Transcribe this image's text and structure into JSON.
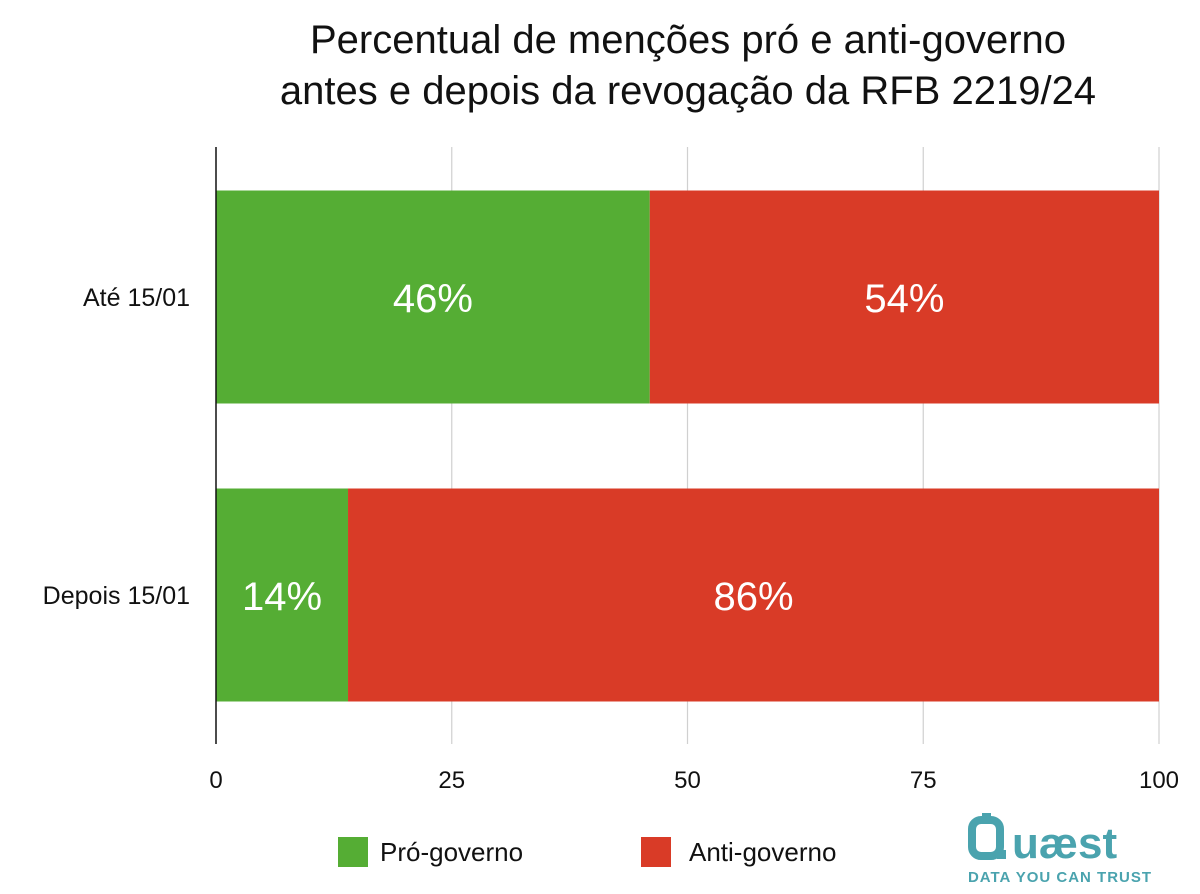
{
  "chart_data": {
    "type": "bar",
    "orientation": "horizontal",
    "stacked": true,
    "title": [
      "Percentual de menções pró e anti-governo",
      "antes e depois da revogação da RFB 2219/24"
    ],
    "categories": [
      "Até 15/01",
      "Depois 15/01"
    ],
    "series": [
      {
        "name": "Pró-governo",
        "values": [
          46,
          14
        ],
        "labels": [
          "46%",
          "14%"
        ],
        "color": "#55ad34"
      },
      {
        "name": "Anti-governo",
        "values": [
          54,
          86
        ],
        "labels": [
          "54%",
          "86%"
        ],
        "color": "#d93b27"
      }
    ],
    "x_ticks": [
      "0",
      "25",
      "50",
      "75",
      "100"
    ],
    "xlim": [
      0,
      100
    ],
    "grid": true,
    "legend": "bottom"
  },
  "logo": {
    "name": "Quaest",
    "text": "uæst",
    "tagline": "DATA YOU CAN TRUST",
    "color": "#4aa3ae"
  }
}
